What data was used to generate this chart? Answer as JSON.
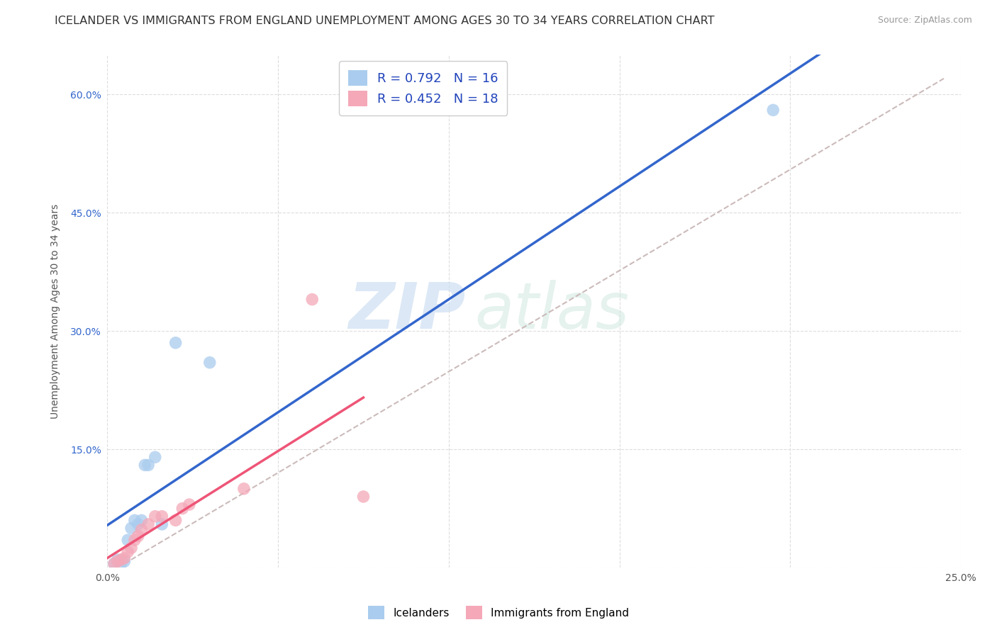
{
  "title": "ICELANDER VS IMMIGRANTS FROM ENGLAND UNEMPLOYMENT AMONG AGES 30 TO 34 YEARS CORRELATION CHART",
  "source": "Source: ZipAtlas.com",
  "ylabel": "Unemployment Among Ages 30 to 34 years",
  "watermark_zip": "ZIP",
  "watermark_atlas": "atlas",
  "xlim": [
    0.0,
    0.25
  ],
  "ylim": [
    0.0,
    0.65
  ],
  "xtick_positions": [
    0.0,
    0.05,
    0.1,
    0.15,
    0.2,
    0.25
  ],
  "xticklabels": [
    "0.0%",
    "",
    "",
    "",
    "",
    "25.0%"
  ],
  "ytick_positions": [
    0.0,
    0.15,
    0.3,
    0.45,
    0.6
  ],
  "yticklabels": [
    "",
    "15.0%",
    "30.0%",
    "45.0%",
    "60.0%"
  ],
  "icelanders_x": [
    0.002,
    0.003,
    0.004,
    0.005,
    0.006,
    0.007,
    0.008,
    0.009,
    0.01,
    0.011,
    0.012,
    0.014,
    0.016,
    0.02,
    0.195,
    0.03
  ],
  "icelanders_y": [
    0.005,
    0.01,
    0.005,
    0.008,
    0.035,
    0.05,
    0.06,
    0.055,
    0.06,
    0.13,
    0.13,
    0.14,
    0.055,
    0.285,
    0.58,
    0.26
  ],
  "england_x": [
    0.002,
    0.003,
    0.004,
    0.005,
    0.006,
    0.007,
    0.008,
    0.009,
    0.01,
    0.012,
    0.014,
    0.016,
    0.02,
    0.022,
    0.024,
    0.04,
    0.06,
    0.075
  ],
  "england_y": [
    0.005,
    0.008,
    0.01,
    0.012,
    0.02,
    0.025,
    0.035,
    0.04,
    0.048,
    0.055,
    0.065,
    0.065,
    0.06,
    0.075,
    0.08,
    0.1,
    0.34,
    0.09
  ],
  "R_icelanders": 0.792,
  "N_icelanders": 16,
  "R_england": 0.452,
  "N_england": 18,
  "color_icelanders": "#aaccee",
  "color_england": "#f4a8b8",
  "regression_color_icelanders": "#3366cc",
  "regression_color_england": "#ee5577",
  "dashed_line_color": "#ccbbbb",
  "title_fontsize": 11.5,
  "label_fontsize": 10,
  "tick_fontsize": 10,
  "source_fontsize": 9,
  "legend_R_color": "#2244bb",
  "ytick_color": "#3366cc",
  "background_color": "#ffffff",
  "grid_color": "#dddddd"
}
